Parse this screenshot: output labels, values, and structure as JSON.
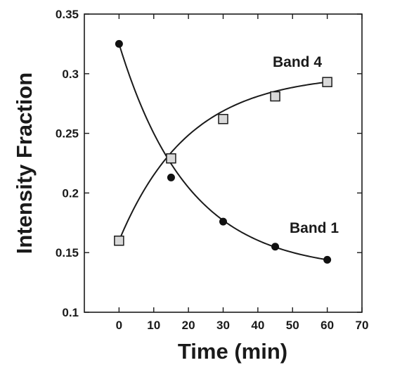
{
  "chart_data": {
    "type": "scatter",
    "title": "",
    "xlabel": "Time (min)",
    "ylabel": "Intensity Fraction",
    "xlim": [
      -10,
      70
    ],
    "ylim": [
      0.1,
      0.35
    ],
    "xticks": [
      0,
      10,
      20,
      30,
      40,
      50,
      60,
      70
    ],
    "yticks": [
      0.1,
      0.15,
      0.2,
      0.25,
      0.3,
      0.35
    ],
    "xtick_labels": [
      "0",
      "10",
      "20",
      "30",
      "40",
      "50",
      "60",
      "70"
    ],
    "ytick_labels": [
      "0.1",
      "0.15",
      "0.2",
      "0.25",
      "0.3",
      "0.35"
    ],
    "grid": false,
    "legend": "none (series labelled directly on plot)",
    "series": [
      {
        "name": "Band 1",
        "marker": "filled circle",
        "color": "#111111",
        "x": [
          0,
          15,
          30,
          45,
          60
        ],
        "y": [
          0.325,
          0.213,
          0.176,
          0.155,
          0.144
        ],
        "fit": "exponential decay"
      },
      {
        "name": "Band 4",
        "marker": "open square",
        "color": "#d9d9d9",
        "x": [
          0,
          15,
          30,
          45,
          60
        ],
        "y": [
          0.16,
          0.229,
          0.262,
          0.281,
          0.293
        ],
        "fit": "exponential rise"
      }
    ]
  }
}
